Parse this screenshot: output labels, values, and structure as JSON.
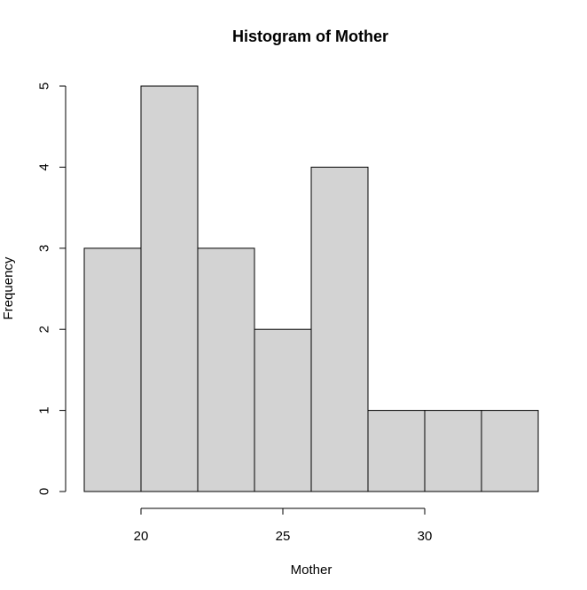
{
  "chart_data": {
    "type": "bar",
    "subtype": "histogram",
    "title": "Histogram of Mother",
    "xlabel": "Mother",
    "ylabel": "Frequency",
    "bins": [
      {
        "start": 18,
        "end": 20,
        "count": 3
      },
      {
        "start": 20,
        "end": 22,
        "count": 5
      },
      {
        "start": 22,
        "end": 24,
        "count": 3
      },
      {
        "start": 24,
        "end": 26,
        "count": 2
      },
      {
        "start": 26,
        "end": 28,
        "count": 4
      },
      {
        "start": 28,
        "end": 30,
        "count": 1
      },
      {
        "start": 30,
        "end": 32,
        "count": 1
      },
      {
        "start": 32,
        "end": 34,
        "count": 1
      }
    ],
    "xticks": [
      20,
      25,
      30
    ],
    "yticks": [
      0,
      1,
      2,
      3,
      4,
      5
    ],
    "xlim": [
      18,
      34
    ],
    "ylim": [
      0,
      5
    ],
    "bar_color": "#d3d3d3",
    "grid": false
  }
}
